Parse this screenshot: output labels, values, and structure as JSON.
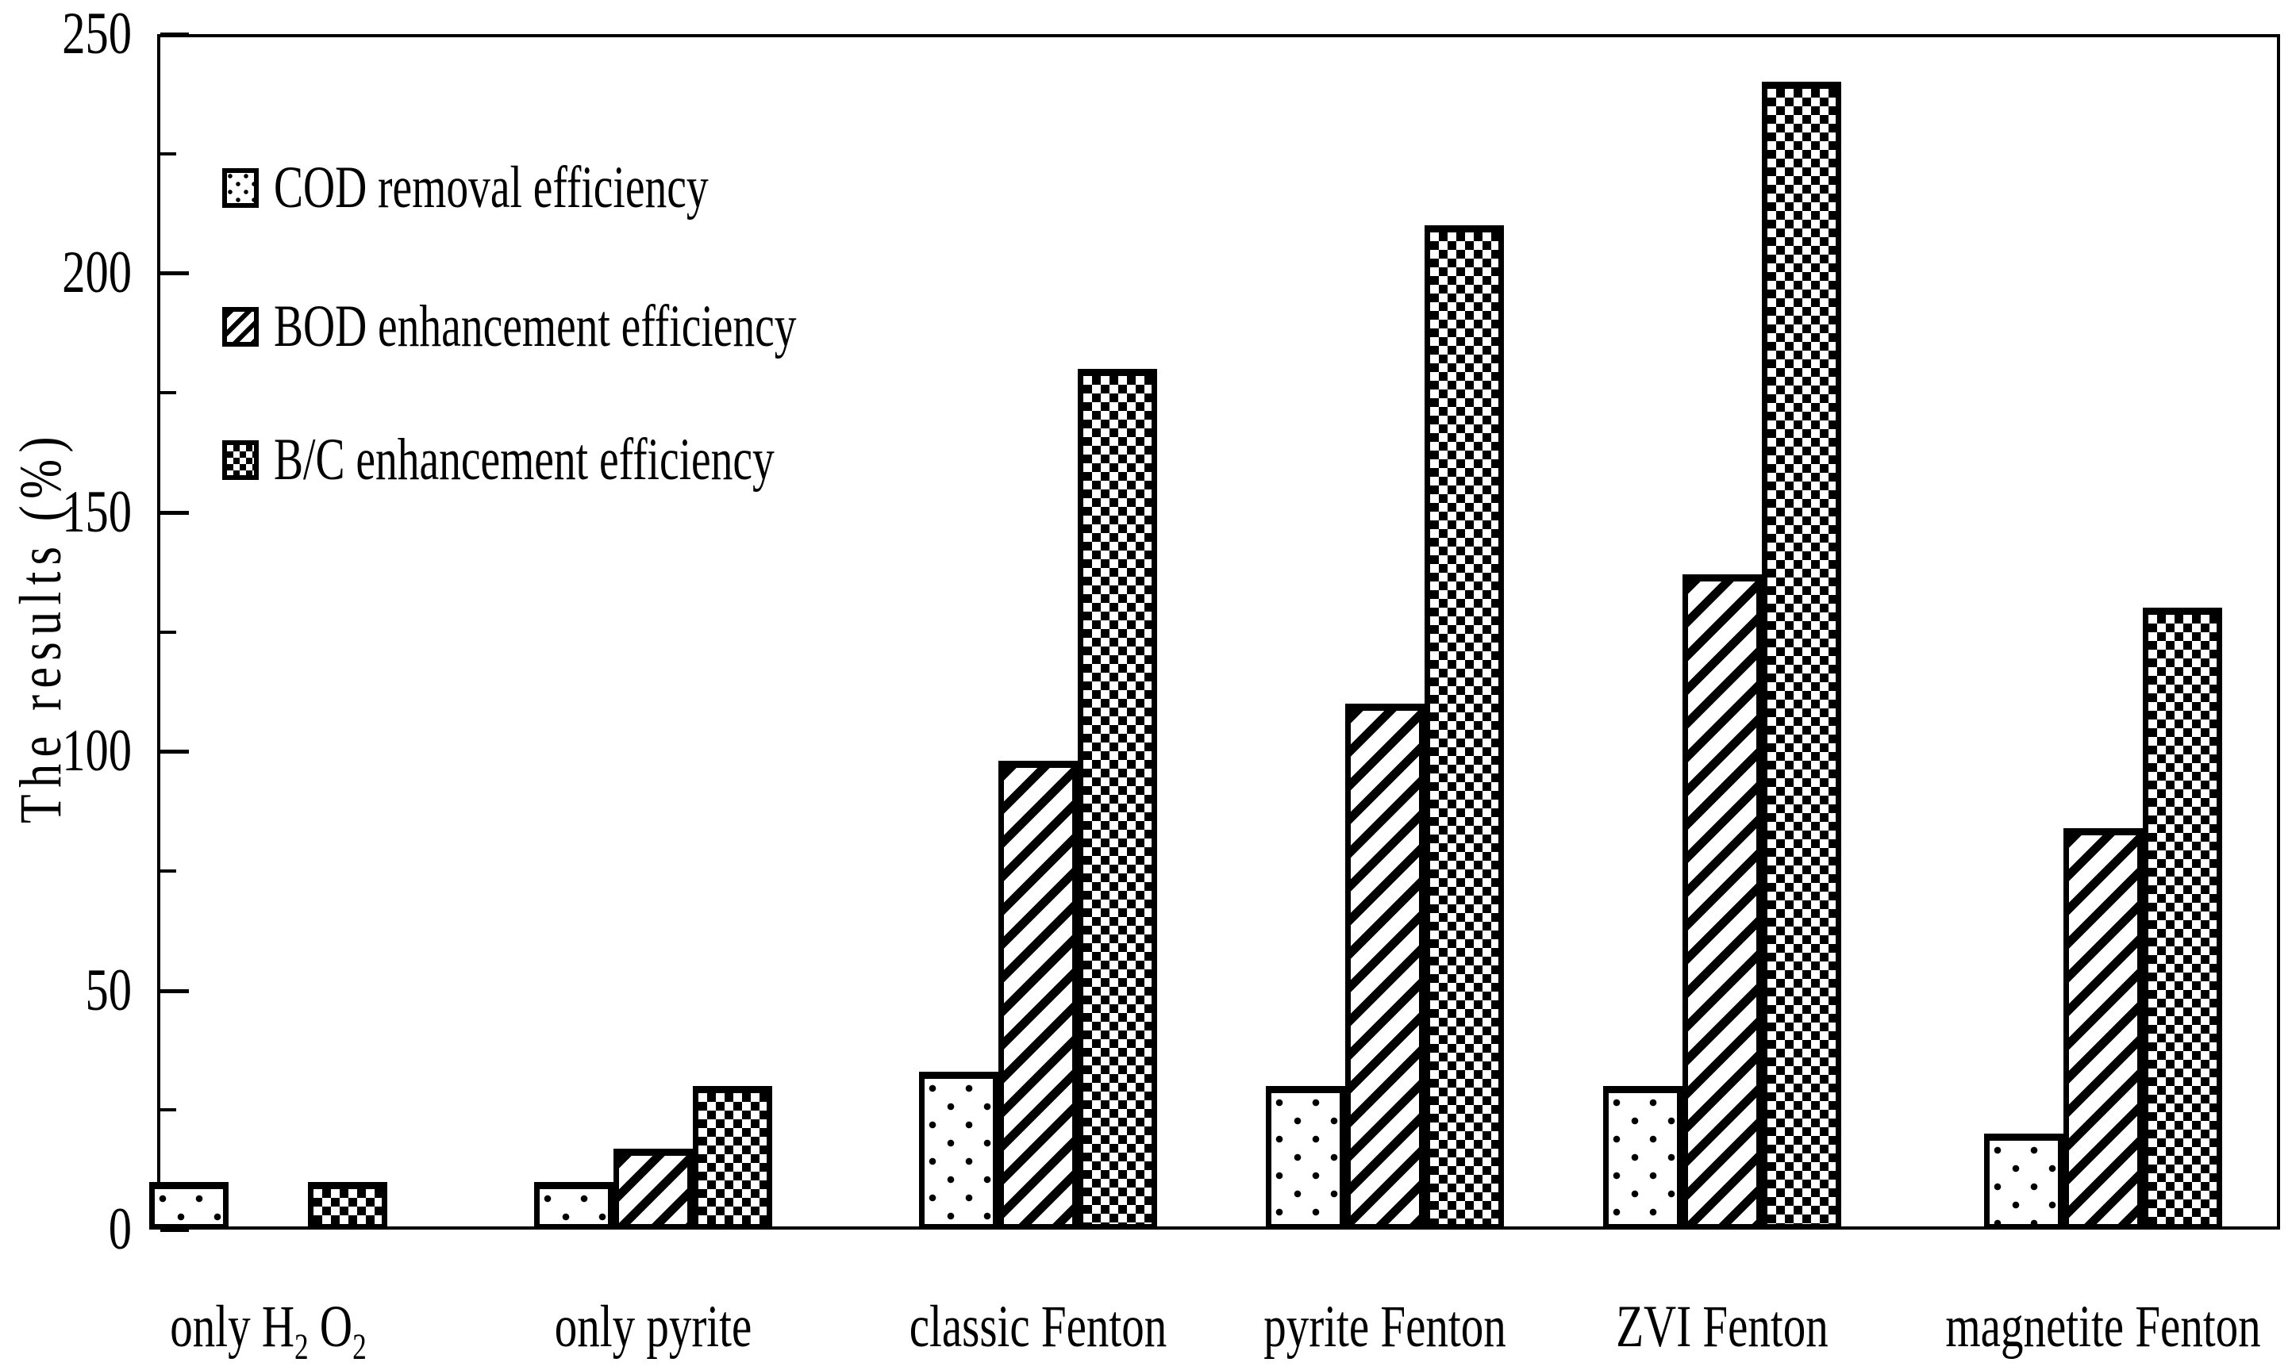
{
  "chart_data": {
    "type": "bar",
    "title": "",
    "categories": [
      "only H₂ O₂",
      "only pyrite",
      "classic Fenton",
      "pyrite Fenton",
      "ZVI Fenton",
      "magnetite Fenton"
    ],
    "series": [
      {
        "name": "COD removal efficiency",
        "pattern": "dots",
        "values": [
          10,
          10,
          33,
          30,
          30,
          20
        ]
      },
      {
        "name": "BOD enhancement efficiency",
        "pattern": "hatch",
        "values": [
          0,
          17,
          98,
          110,
          137,
          84
        ]
      },
      {
        "name": "B/C enhancement efficiency",
        "pattern": "checker",
        "values": [
          10,
          30,
          180,
          210,
          240,
          130
        ]
      }
    ],
    "xlabel": "",
    "ylabel": "The results (%)",
    "ylim": [
      0,
      250
    ],
    "y_major_ticks": [
      0,
      50,
      100,
      150,
      200,
      250
    ],
    "y_minor_tick_step": 25,
    "grid": false,
    "legend_position": "upper-left",
    "bar_outline_color": "#000000",
    "background_color": "#ffffff"
  }
}
